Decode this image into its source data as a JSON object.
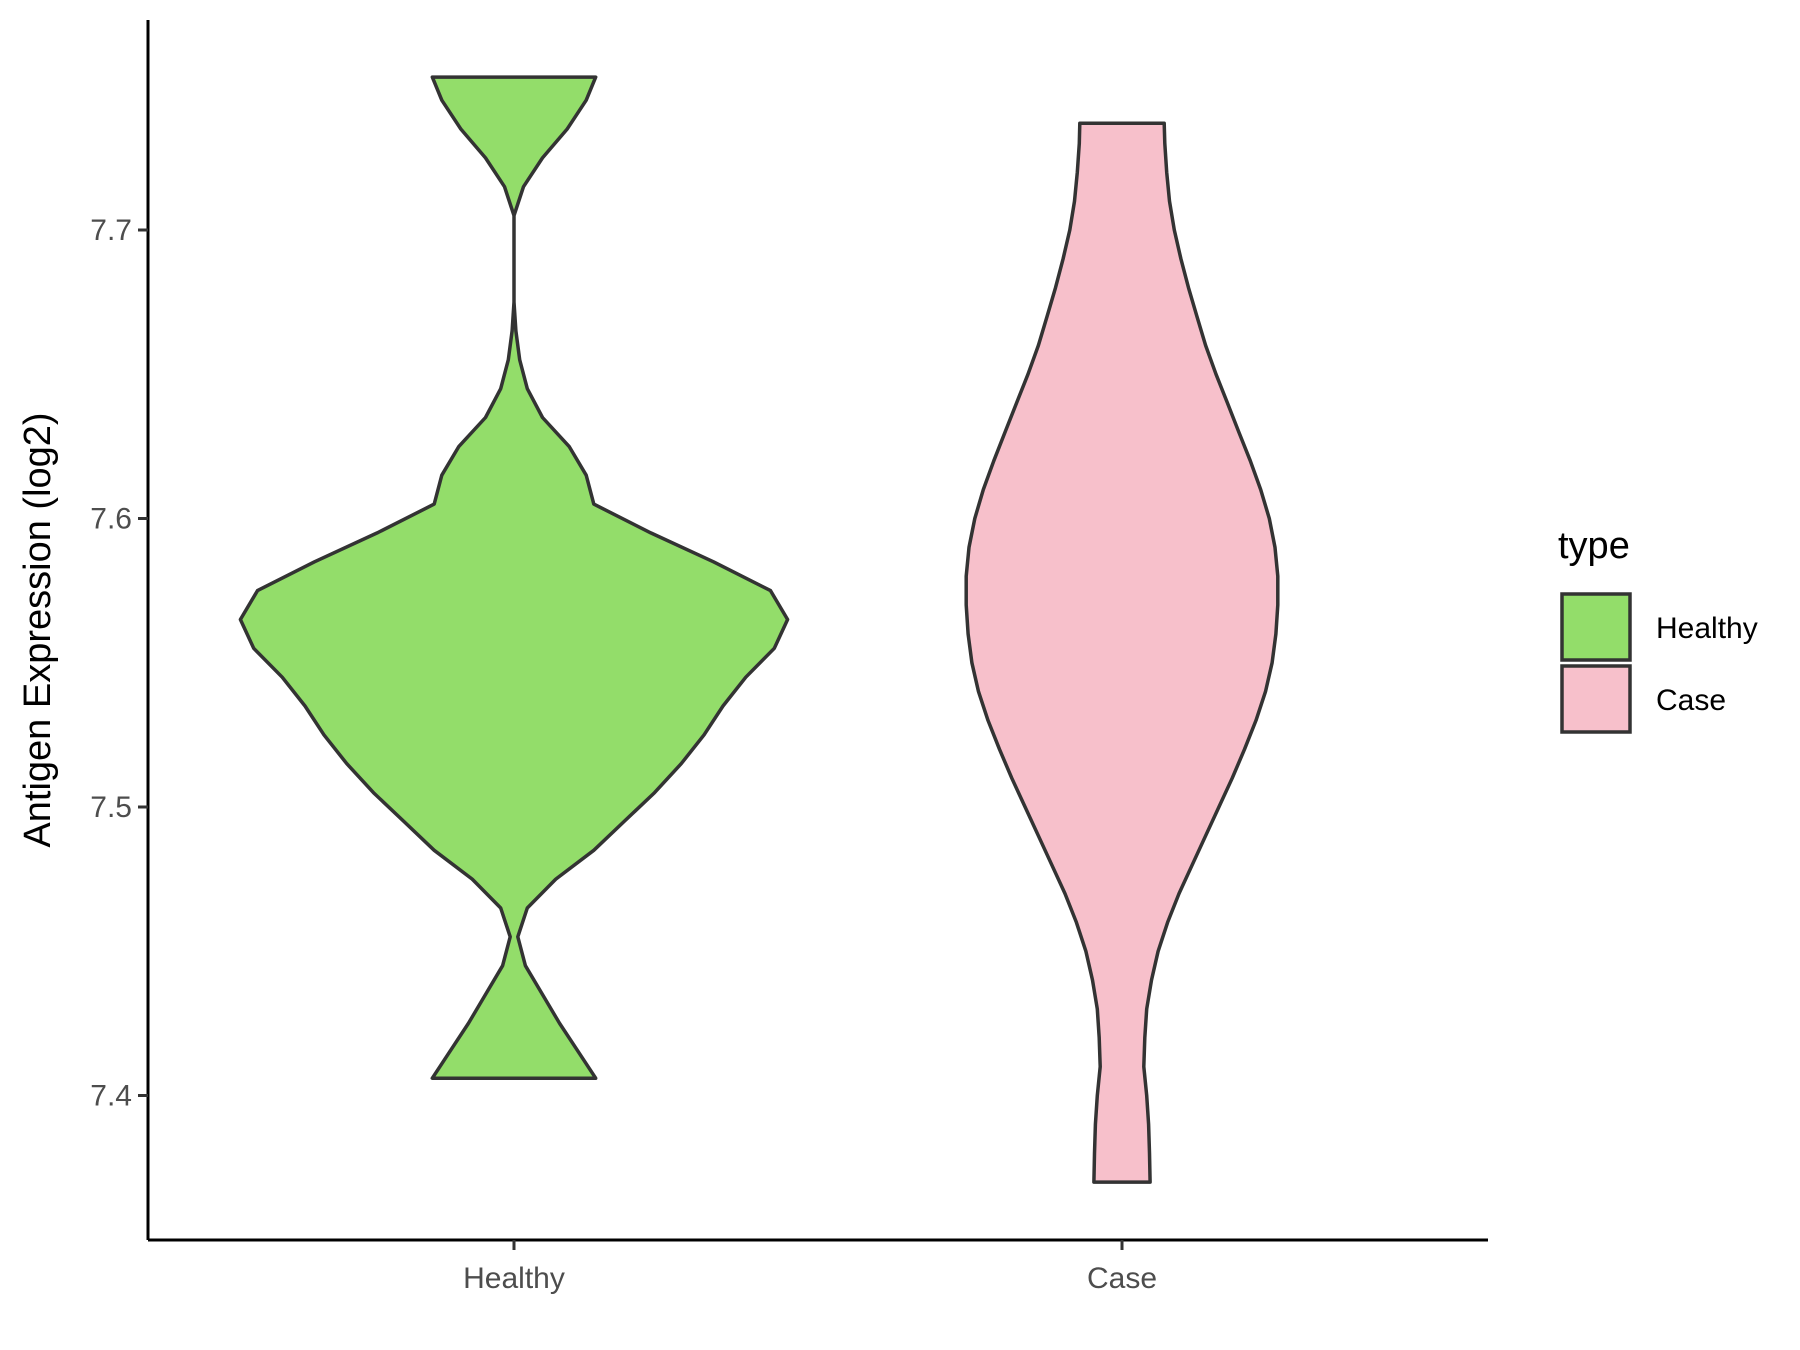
{
  "chart_data": {
    "type": "violin",
    "title": "",
    "xlabel": "",
    "ylabel": "Antigen Expression (log2)",
    "ylim": [
      7.35,
      7.77
    ],
    "yticks": [
      "7.4",
      "7.5",
      "7.6",
      "7.7"
    ],
    "grid": false,
    "legend": {
      "title": "type",
      "position": "right",
      "entries": [
        "Healthy",
        "Case"
      ]
    },
    "categories": [
      "Healthy",
      "Case"
    ],
    "series": [
      {
        "name": "Healthy",
        "color": "#93dd6a",
        "min": 7.406,
        "max": 7.753,
        "density_profile": [
          [
            7.406,
            0.43
          ],
          [
            7.415,
            0.34
          ],
          [
            7.425,
            0.24
          ],
          [
            7.435,
            0.15
          ],
          [
            7.445,
            0.06
          ],
          [
            7.455,
            0.02
          ],
          [
            7.465,
            0.07
          ],
          [
            7.475,
            0.22
          ],
          [
            7.485,
            0.42
          ],
          [
            7.495,
            0.58
          ],
          [
            7.505,
            0.74
          ],
          [
            7.515,
            0.88
          ],
          [
            7.525,
            1.0
          ],
          [
            7.535,
            1.1
          ],
          [
            7.545,
            1.22
          ],
          [
            7.555,
            1.37
          ],
          [
            7.565,
            1.44
          ],
          [
            7.575,
            1.35
          ],
          [
            7.585,
            1.05
          ],
          [
            7.595,
            0.72
          ],
          [
            7.605,
            0.42
          ],
          [
            7.615,
            0.38
          ],
          [
            7.625,
            0.29
          ],
          [
            7.635,
            0.15
          ],
          [
            7.645,
            0.07
          ],
          [
            7.655,
            0.03
          ],
          [
            7.665,
            0.01
          ],
          [
            7.675,
            0.0
          ],
          [
            7.69,
            0.0
          ],
          [
            7.705,
            0.0
          ],
          [
            7.715,
            0.05
          ],
          [
            7.725,
            0.15
          ],
          [
            7.735,
            0.28
          ],
          [
            7.745,
            0.38
          ],
          [
            7.753,
            0.43
          ]
        ]
      },
      {
        "name": "Case",
        "color": "#f7c0cb",
        "min": 7.37,
        "max": 7.737,
        "density_profile": [
          [
            7.37,
            0.148
          ],
          [
            7.38,
            0.145
          ],
          [
            7.39,
            0.14
          ],
          [
            7.4,
            0.13
          ],
          [
            7.41,
            0.115
          ],
          [
            7.42,
            0.12
          ],
          [
            7.43,
            0.13
          ],
          [
            7.44,
            0.155
          ],
          [
            7.45,
            0.19
          ],
          [
            7.46,
            0.24
          ],
          [
            7.47,
            0.3
          ],
          [
            7.48,
            0.37
          ],
          [
            7.49,
            0.44
          ],
          [
            7.5,
            0.51
          ],
          [
            7.51,
            0.58
          ],
          [
            7.52,
            0.645
          ],
          [
            7.53,
            0.705
          ],
          [
            7.54,
            0.755
          ],
          [
            7.55,
            0.79
          ],
          [
            7.56,
            0.81
          ],
          [
            7.57,
            0.82
          ],
          [
            7.58,
            0.82
          ],
          [
            7.59,
            0.805
          ],
          [
            7.6,
            0.775
          ],
          [
            7.61,
            0.73
          ],
          [
            7.62,
            0.675
          ],
          [
            7.63,
            0.615
          ],
          [
            7.64,
            0.555
          ],
          [
            7.65,
            0.495
          ],
          [
            7.66,
            0.44
          ],
          [
            7.67,
            0.395
          ],
          [
            7.68,
            0.35
          ],
          [
            7.69,
            0.31
          ],
          [
            7.7,
            0.275
          ],
          [
            7.71,
            0.25
          ],
          [
            7.72,
            0.235
          ],
          [
            7.73,
            0.225
          ],
          [
            7.737,
            0.222
          ]
        ]
      }
    ]
  }
}
